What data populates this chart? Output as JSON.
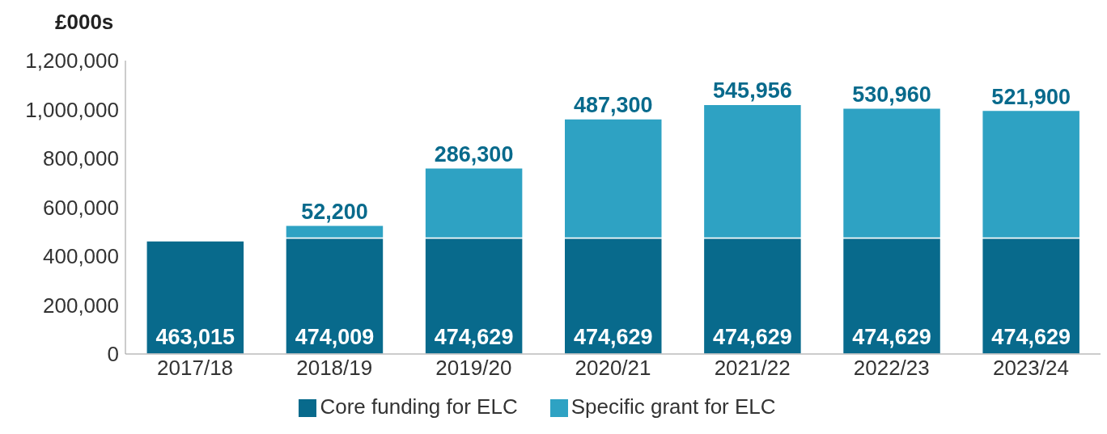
{
  "chart_data": {
    "type": "bar",
    "stacked": true,
    "ylabel": "£000s",
    "categories": [
      "2017/18",
      "2018/19",
      "2019/20",
      "2020/21",
      "2021/22",
      "2022/23",
      "2023/24"
    ],
    "series": [
      {
        "name": "Core funding for ELC",
        "color": "#086a8c",
        "values": [
          463015,
          474009,
          474629,
          474629,
          474629,
          474629,
          474629
        ],
        "value_labels": [
          "463,015",
          "474,009",
          "474,629",
          "474,629",
          "474,629",
          "474,629",
          "474,629"
        ]
      },
      {
        "name": "Specific grant for ELC",
        "color": "#2ea2c3",
        "values": [
          null,
          52200,
          286300,
          487300,
          545956,
          530960,
          521900
        ],
        "value_labels": [
          null,
          "52,200",
          "286,300",
          "487,300",
          "545,956",
          "530,960",
          "521,900"
        ]
      }
    ],
    "ylim": [
      0,
      1200000
    ],
    "yticks": [
      0,
      {
        "value": 200000,
        "label": "200,000"
      },
      {
        "value": 400000,
        "label": "400,000"
      },
      {
        "value": 600000,
        "label": "600,000"
      },
      {
        "value": 800000,
        "label": "800,000"
      },
      {
        "value": 1000000,
        "label": "1,000,000"
      },
      {
        "value": 1200000,
        "label": "1,200,000"
      }
    ],
    "grid": false,
    "legend": "bottom"
  }
}
